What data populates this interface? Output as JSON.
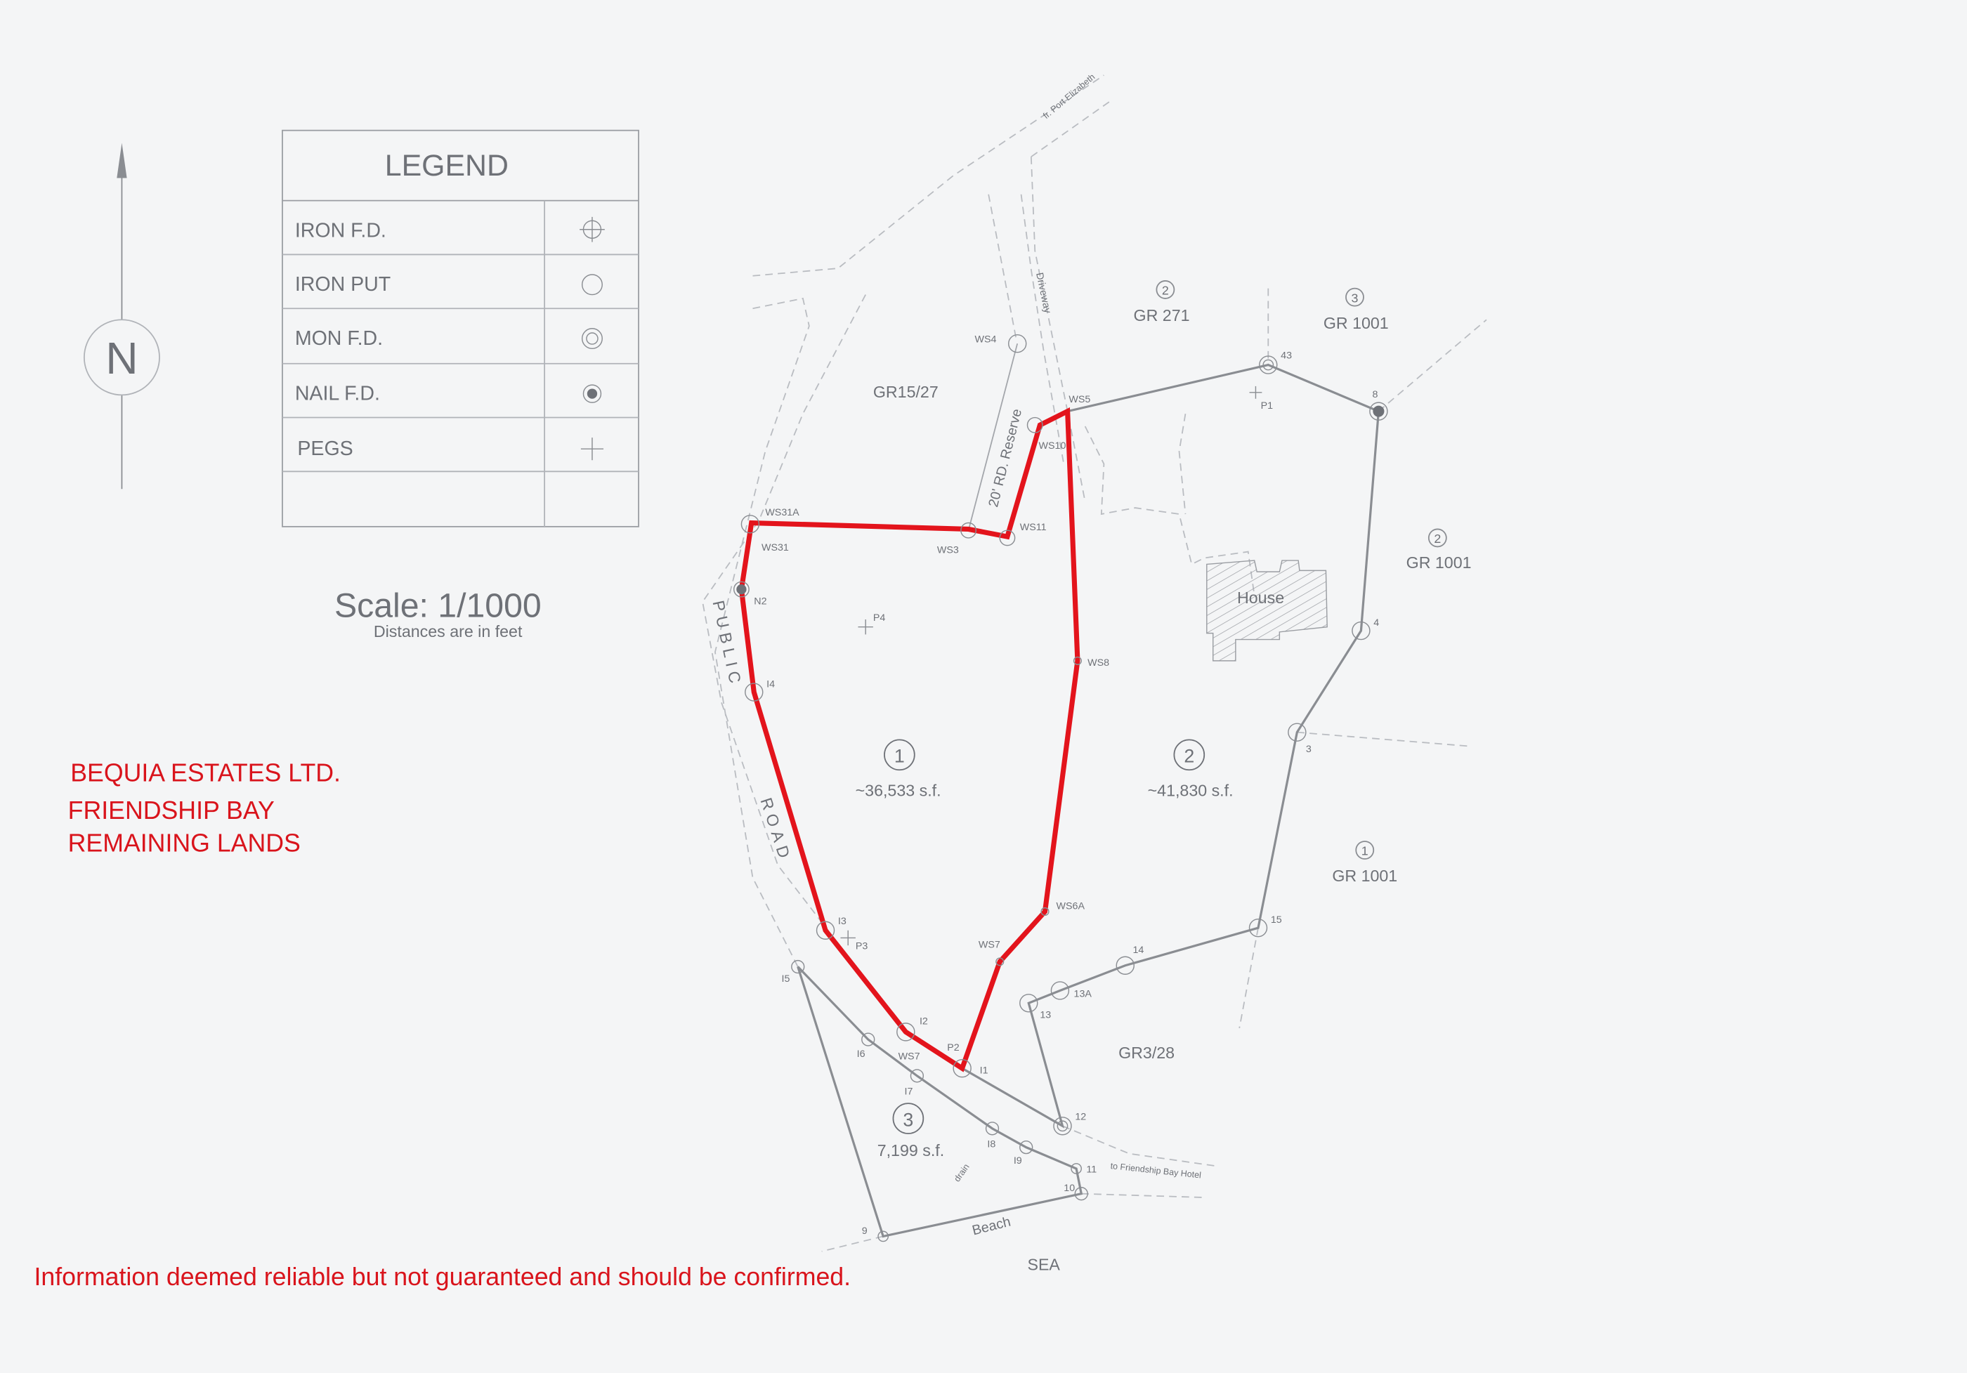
{
  "legend": {
    "title": "LEGEND",
    "items": [
      {
        "label": "IRON F.D.",
        "icon": "circle-crosshair-icon"
      },
      {
        "label": "IRON PUT",
        "icon": "open-circle-icon"
      },
      {
        "label": "MON F.D.",
        "icon": "double-circle-icon"
      },
      {
        "label": "NAIL F.D.",
        "icon": "filled-dot-circle-icon"
      },
      {
        "label": "PEGS",
        "icon": "plus-icon"
      }
    ]
  },
  "north": {
    "label": "N",
    "icon": "north-arrow-icon"
  },
  "scale": {
    "title": "Scale: 1/1000",
    "note": "Distances are in feet"
  },
  "owner": {
    "line1": "BEQUIA ESTATES LTD.",
    "line2": "FRIENDSHIP BAY",
    "line3": "REMAINING LANDS"
  },
  "disclaimer": "Information deemed reliable but not guaranteed and should be confirmed.",
  "colors": {
    "highlight_boundary": "#e3141c",
    "text_red": "#d9141c",
    "lines": "#8a8d92",
    "background": "#f4f5f6"
  },
  "parcels": {
    "p1": {
      "num": "1",
      "area": "~36,533 s.f."
    },
    "p2": {
      "num": "2",
      "area": "~41,830 s.f."
    },
    "p3": {
      "num": "3",
      "area": "7,199 s.f."
    }
  },
  "neighbors": {
    "gr271": {
      "num": "2",
      "name": "GR 271"
    },
    "gr1001a": {
      "num": "3",
      "name": "GR 1001"
    },
    "gr1001b": {
      "num": "2",
      "name": "GR 1001"
    },
    "gr1001c": {
      "num": "1",
      "name": "GR 1001"
    },
    "gr1527": {
      "name": "GR15/27"
    },
    "gr328": {
      "name": "GR3/28"
    }
  },
  "features": {
    "house": "House",
    "driveway": "Driveway",
    "road_reserve": "20' RD. Reserve",
    "public": "PUBLIC",
    "road": "ROAD",
    "from_port": "fr. Port Elizabeth",
    "to_hotel": "to Friendship Bay Hotel",
    "beach": "Beach",
    "sea": "SEA",
    "drain": "drain"
  },
  "points": {
    "WS4": "WS4",
    "WS5": "WS5",
    "WS10": "WS10",
    "WS11": "WS11",
    "WS3": "WS3",
    "WS31A": "WS31A",
    "WS31": "WS31",
    "N2": "N2",
    "P4": "P4",
    "I4": "I4",
    "WS8": "WS8",
    "WS6A": "WS6A",
    "WS7a": "WS7",
    "I3": "I3",
    "P3": "P3",
    "I5": "I5",
    "I2": "I2",
    "P2": "P2",
    "I1": "I1",
    "I6": "I6",
    "WS7b": "WS7",
    "I7": "I7",
    "I8": "I8",
    "I9": "I9",
    "p11": "11",
    "p10": "10",
    "p9": "9",
    "p12": "12",
    "p13": "13",
    "p13A": "13A",
    "p14": "14",
    "p15": "15",
    "p3": "3",
    "p4": "4",
    "p8": "8",
    "p43": "43",
    "P1": "P1"
  }
}
